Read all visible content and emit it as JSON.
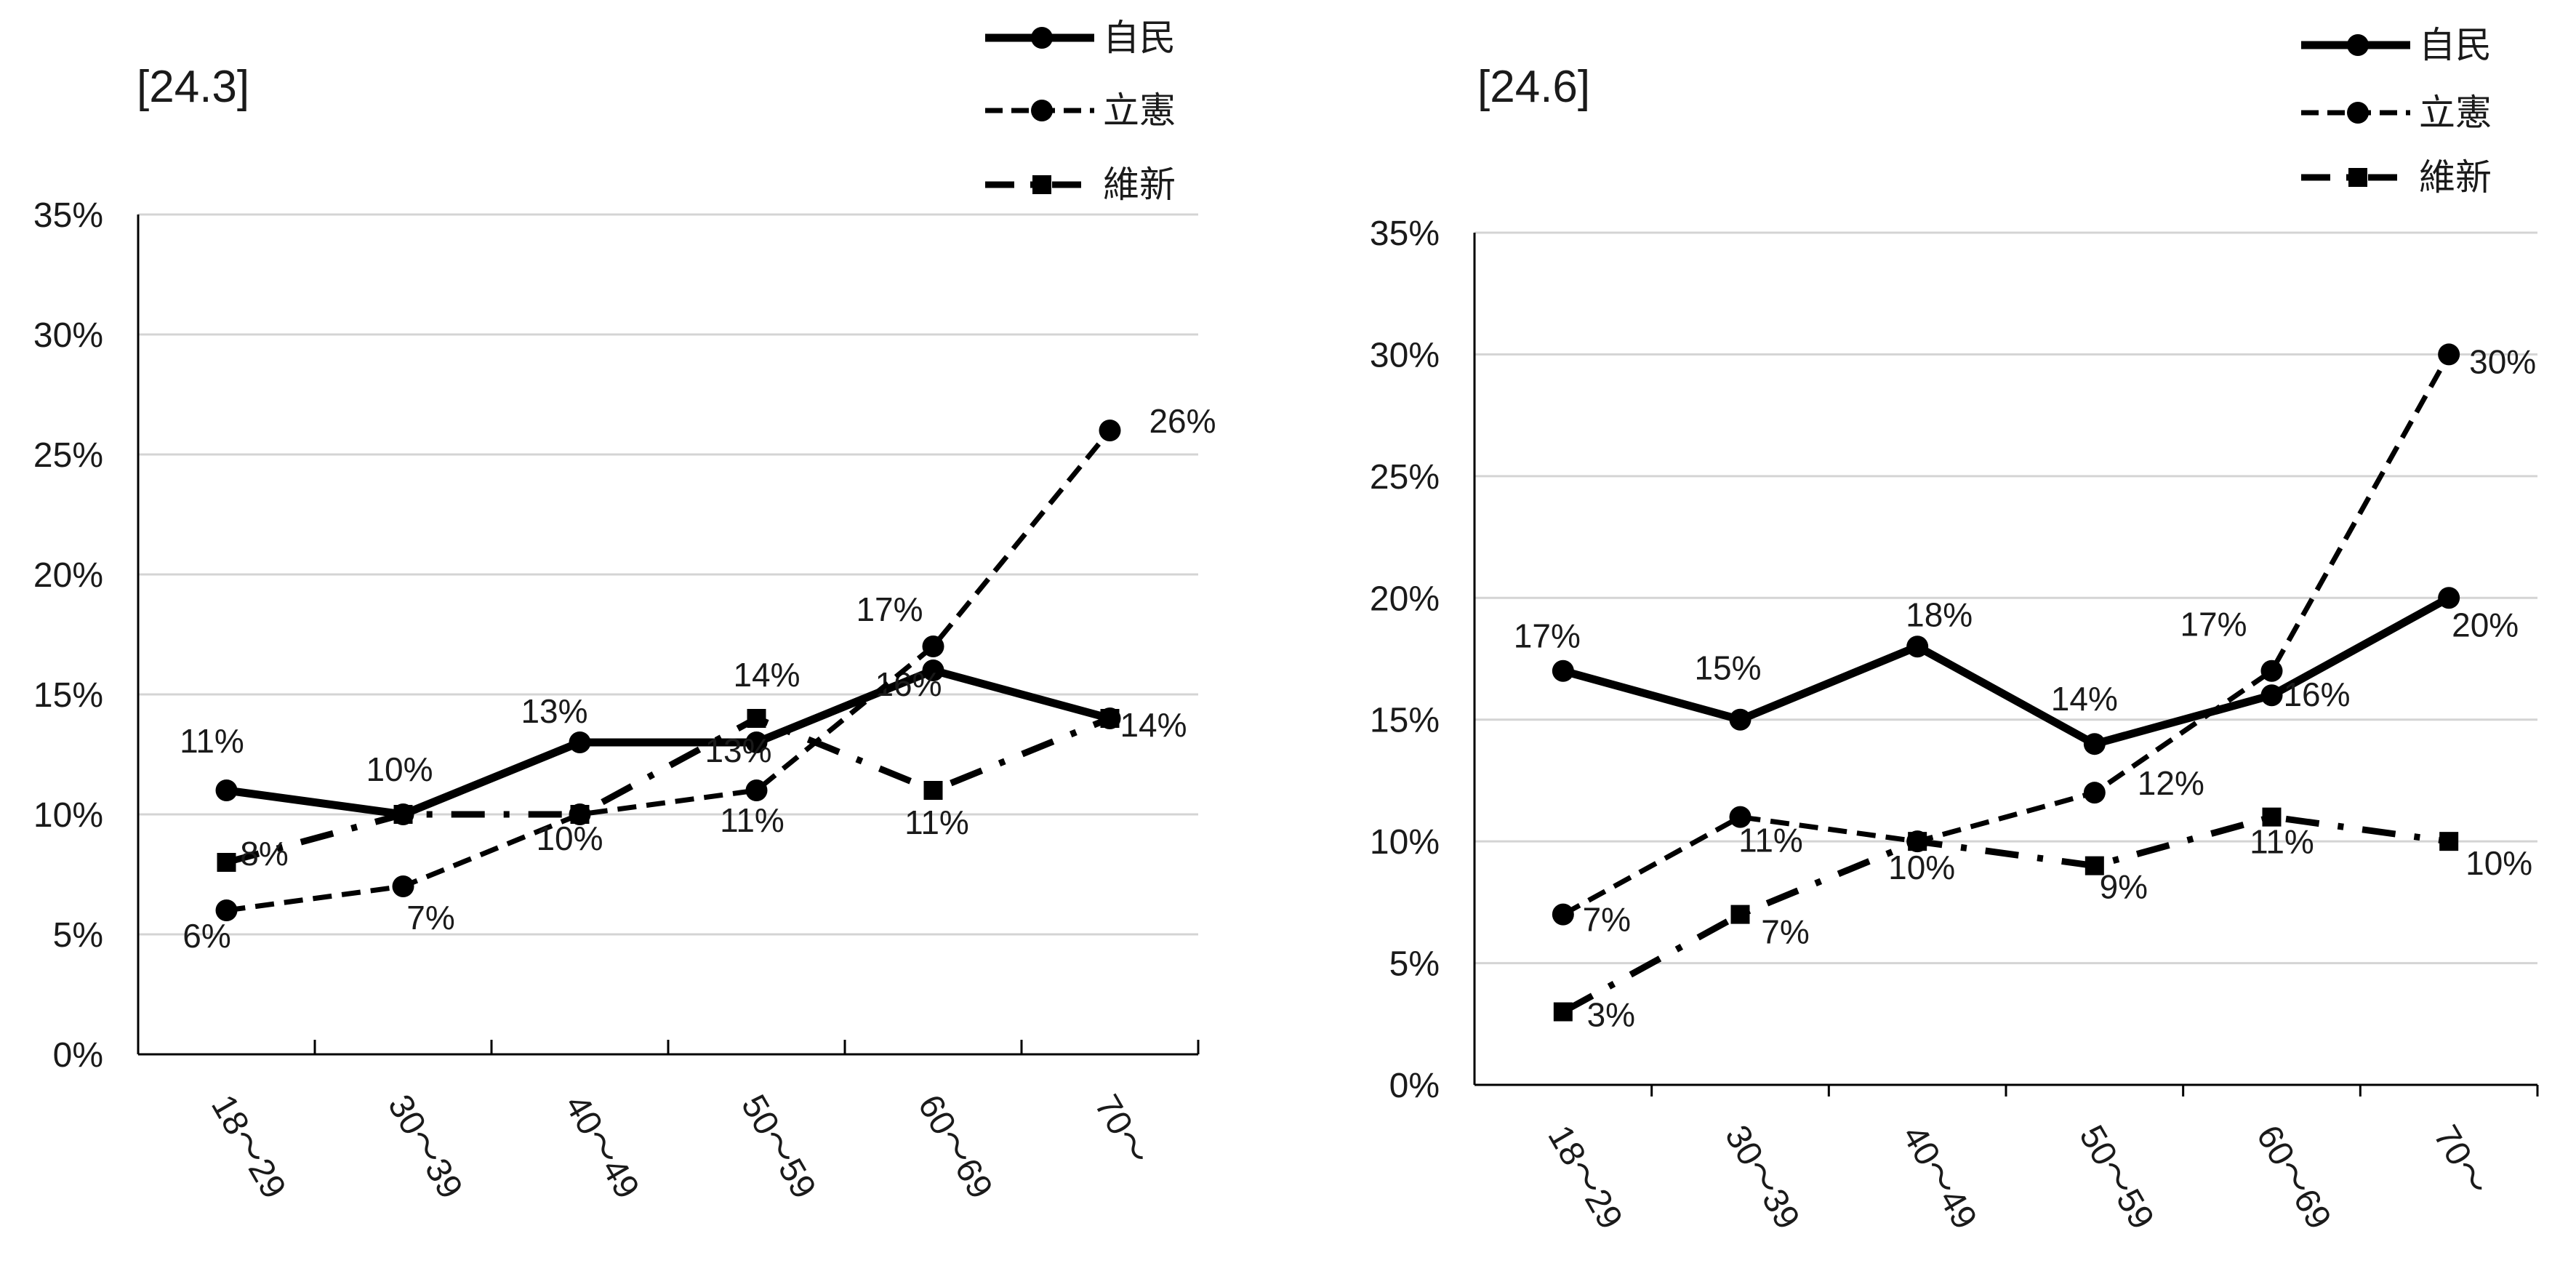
{
  "chart_data": [
    {
      "type": "line",
      "title": "[24.3]",
      "categories": [
        "18〜29",
        "30〜39",
        "40〜49",
        "50〜59",
        "60〜69",
        "70〜"
      ],
      "ylim": [
        0,
        35
      ],
      "yticks": [
        "0%",
        "5%",
        "10%",
        "15%",
        "20%",
        "25%",
        "30%",
        "35%"
      ],
      "grid": true,
      "legend_position": "top-right",
      "series": [
        {
          "name": "自民",
          "values": [
            11,
            10,
            13,
            13,
            16,
            14
          ],
          "labels": [
            "11%",
            "10%",
            "13%",
            "13%",
            "16%",
            "14%"
          ],
          "line_style": "solid",
          "marker": "circle",
          "color": "#000000"
        },
        {
          "name": "立憲",
          "values": [
            6,
            7,
            10,
            11,
            17,
            26
          ],
          "labels": [
            "6%",
            "7%",
            "10%",
            "11%",
            "17%",
            "26%"
          ],
          "line_style": "dashed",
          "marker": "circle",
          "color": "#000000"
        },
        {
          "name": "維新",
          "values": [
            8,
            10,
            10,
            14,
            11,
            14
          ],
          "labels": [
            "8%",
            "",
            "",
            "14%",
            "11%",
            ""
          ],
          "line_style": "dash-dot",
          "marker": "square",
          "color": "#000000"
        }
      ]
    },
    {
      "type": "line",
      "title": "[24.6]",
      "categories": [
        "18〜29",
        "30〜39",
        "40〜49",
        "50〜59",
        "60〜69",
        "70〜"
      ],
      "ylim": [
        0,
        35
      ],
      "yticks": [
        "0%",
        "5%",
        "10%",
        "15%",
        "20%",
        "25%",
        "30%",
        "35%"
      ],
      "grid": true,
      "legend_position": "top-right",
      "series": [
        {
          "name": "自民",
          "values": [
            17,
            15,
            18,
            14,
            16,
            20
          ],
          "labels": [
            "17%",
            "15%",
            "18%",
            "14%",
            "16%",
            "20%"
          ],
          "line_style": "solid",
          "marker": "circle",
          "color": "#000000"
        },
        {
          "name": "立憲",
          "values": [
            7,
            11,
            10,
            12,
            17,
            30
          ],
          "labels": [
            "7%",
            "11%",
            "10%",
            "12%",
            "17%",
            "30%"
          ],
          "line_style": "dashed",
          "marker": "circle",
          "color": "#000000"
        },
        {
          "name": "維新",
          "values": [
            3,
            7,
            10,
            9,
            11,
            10
          ],
          "labels": [
            "3%",
            "7%",
            "",
            "9%",
            "11%",
            "10%"
          ],
          "line_style": "dash-dot",
          "marker": "square",
          "color": "#000000"
        }
      ]
    }
  ]
}
